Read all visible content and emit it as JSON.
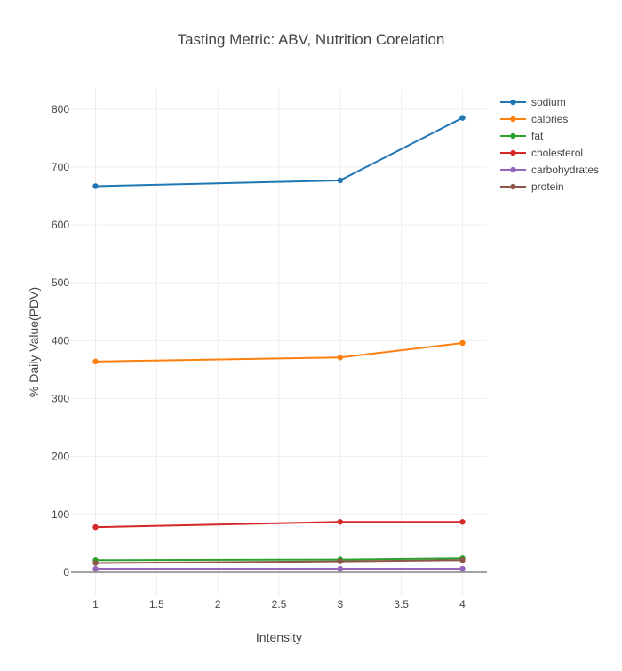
{
  "chart_data": {
    "type": "line",
    "title": "Tasting Metric: ABV, Nutrition Corelation",
    "xlabel": "Intensity",
    "ylabel": "% Daily Value(PDV)",
    "xlim": [
      0.8,
      4.2
    ],
    "ylim": [
      -40,
      835
    ],
    "x_ticks": [
      1,
      1.5,
      2,
      2.5,
      3,
      3.5,
      4
    ],
    "x_tick_labels": [
      "1",
      "1.5",
      "2",
      "2.5",
      "3",
      "3.5",
      "4"
    ],
    "y_ticks": [
      0,
      100,
      200,
      300,
      400,
      500,
      600,
      700,
      800
    ],
    "y_tick_labels": [
      "0",
      "100",
      "200",
      "300",
      "400",
      "500",
      "600",
      "700",
      "800"
    ],
    "grid": true,
    "legend_position": "top-right",
    "x": [
      1,
      3,
      4
    ],
    "series": [
      {
        "name": "sodium",
        "color": "#1f77b4",
        "values": [
          667,
          677,
          785
        ]
      },
      {
        "name": "calories",
        "color": "#ff7f0e",
        "values": [
          364,
          371,
          396
        ]
      },
      {
        "name": "fat",
        "color": "#2ca02c",
        "values": [
          21,
          22,
          24
        ]
      },
      {
        "name": "cholesterol",
        "color": "#d62728",
        "values": [
          78,
          87,
          87
        ]
      },
      {
        "name": "carbohydrates",
        "color": "#9467bd",
        "values": [
          6,
          6,
          6
        ]
      },
      {
        "name": "protein",
        "color": "#8c564b",
        "values": [
          16,
          19,
          21
        ]
      }
    ]
  }
}
